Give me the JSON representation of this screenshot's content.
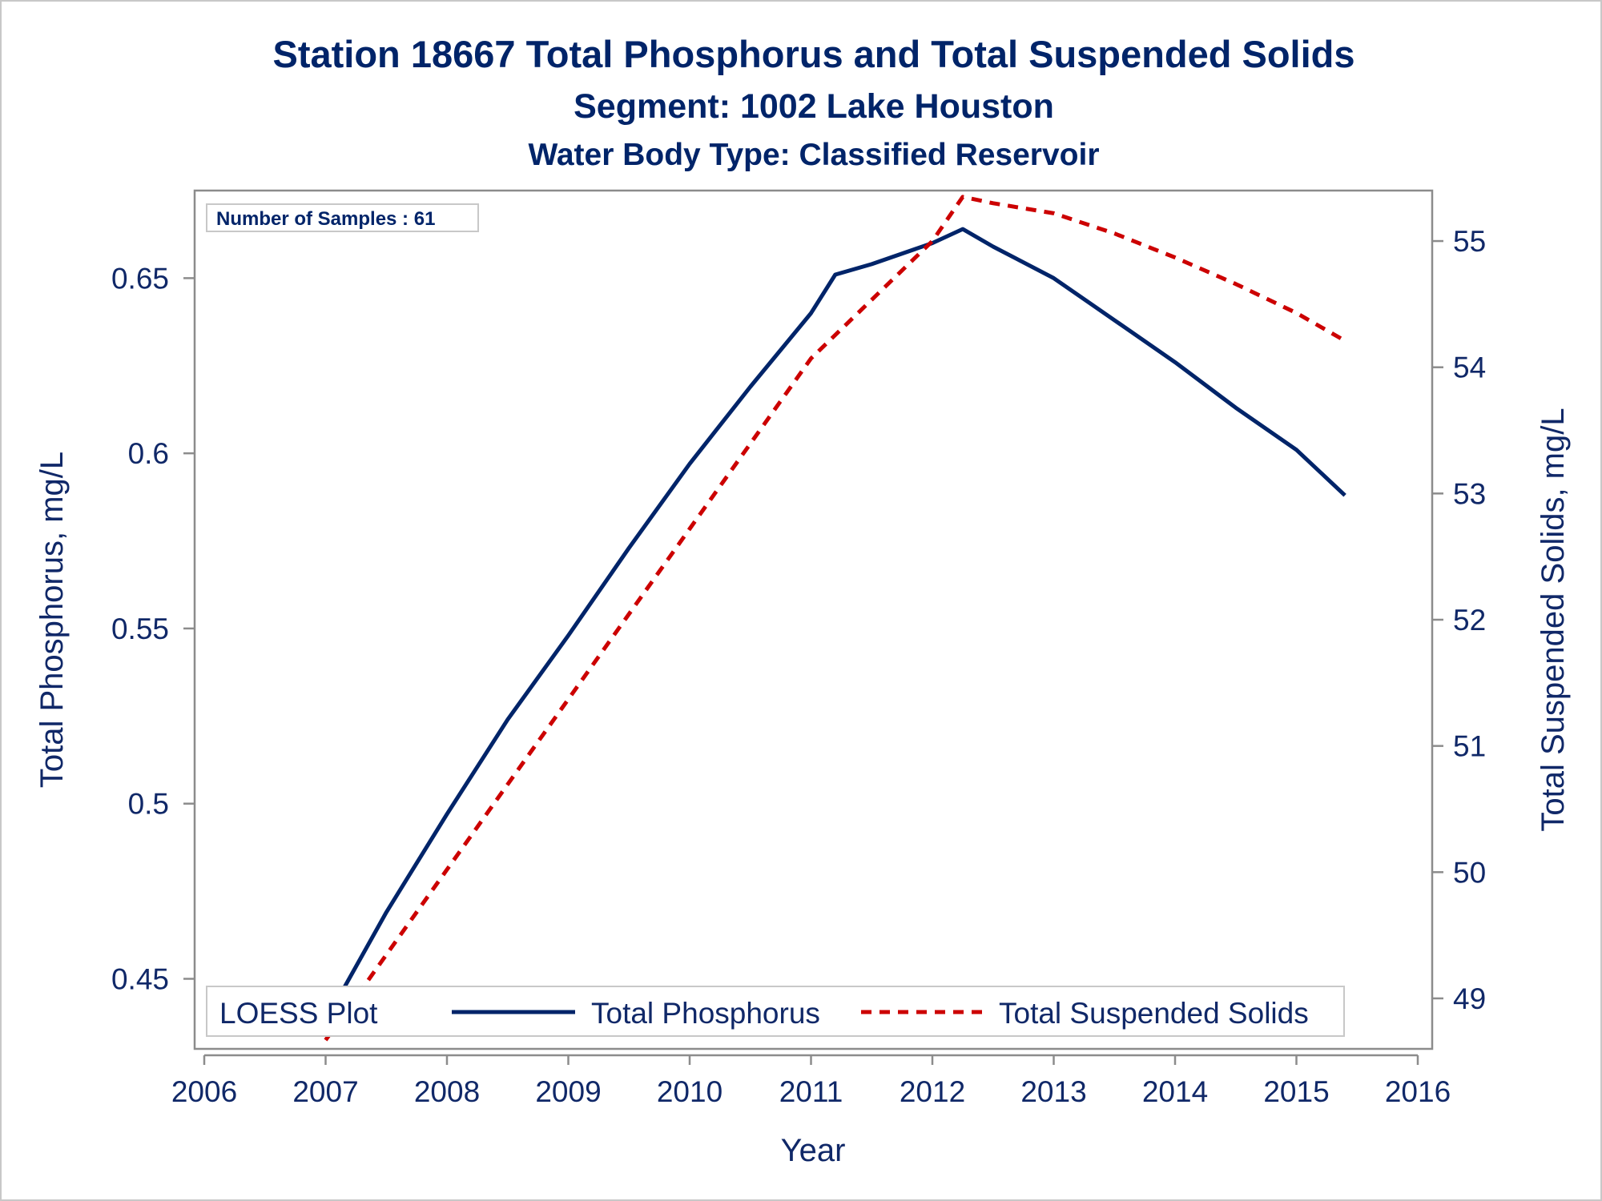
{
  "titles": {
    "title": "Station 18667  Total Phosphorus and Total Suspended Solids",
    "subtitle1": "Segment: 1002  Lake Houston",
    "subtitle2": "Water Body Type: Classified Reservoir"
  },
  "inset": "Number of Samples : 61",
  "legend": {
    "title": "LOESS Plot",
    "items": [
      "Total Phosphorus",
      "Total Suspended Solids"
    ]
  },
  "colors": {
    "phosphorus": "#002469",
    "tss": "#cc0000",
    "axis": "#8c8c8c",
    "text": "#102868"
  },
  "chart_data": {
    "type": "line",
    "title": "Station 18667  Total Phosphorus and Total Suspended Solids",
    "xlabel": "Year",
    "ylabel": "Total Phosphorus, mg/L",
    "y2label": "Total Suspended Solids, mg/L",
    "xlim": [
      2006,
      2016
    ],
    "xticks": [
      "2006",
      "2007",
      "2008",
      "2009",
      "2010",
      "2011",
      "2012",
      "2013",
      "2014",
      "2015",
      "2016"
    ],
    "ylim": [
      0.43,
      0.675
    ],
    "yticks": [
      "0.45",
      "0.5",
      "0.55",
      "0.6",
      "0.65"
    ],
    "y2lim": [
      48.6,
      55.4
    ],
    "y2ticks": [
      "49",
      "50",
      "51",
      "52",
      "53",
      "54",
      "55"
    ],
    "grid": false,
    "legend_position": "bottom-inside",
    "series": [
      {
        "name": "Total Phosphorus",
        "axis": "left",
        "style": "solid",
        "x": [
          2007.0,
          2007.5,
          2008.0,
          2008.5,
          2009.0,
          2009.5,
          2010.0,
          2010.5,
          2011.0,
          2011.2,
          2011.5,
          2012.0,
          2012.25,
          2012.5,
          2013.0,
          2013.5,
          2014.0,
          2014.5,
          2015.0,
          2015.4
        ],
        "y": [
          0.438,
          0.469,
          0.497,
          0.524,
          0.548,
          0.573,
          0.597,
          0.619,
          0.64,
          0.651,
          0.654,
          0.66,
          0.664,
          0.659,
          0.65,
          0.638,
          0.626,
          0.613,
          0.601,
          0.588
        ]
      },
      {
        "name": "Total Suspended Solids",
        "axis": "right",
        "style": "dashed",
        "x": [
          2007.0,
          2008.0,
          2009.0,
          2010.0,
          2011.0,
          2012.0,
          2012.25,
          2012.5,
          2013.0,
          2013.5,
          2014.0,
          2014.5,
          2015.0,
          2015.4
        ],
        "y": [
          48.67,
          50.02,
          51.37,
          52.72,
          54.07,
          55.0,
          55.35,
          55.3,
          55.22,
          55.06,
          54.87,
          54.66,
          54.43,
          54.21
        ]
      }
    ]
  }
}
